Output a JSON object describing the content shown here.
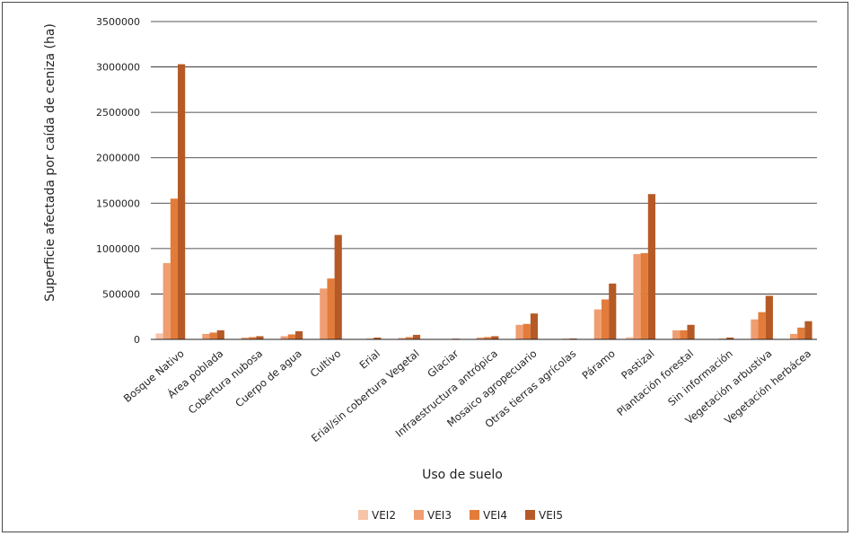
{
  "chart_data": {
    "type": "bar",
    "title": "",
    "xlabel": "Uso de suelo",
    "ylabel": "Superficie afectada por caída de ceniza (ha)",
    "ylim": [
      0,
      3500000
    ],
    "yticks": [
      0,
      500000,
      1000000,
      1500000,
      2000000,
      2500000,
      3000000,
      3500000
    ],
    "grid": true,
    "legend_position": "bottom",
    "categories": [
      "Bosque Nativo",
      "Área poblada",
      "Cobertura nubosa",
      "Cuerpo de agua",
      "Cultivo",
      "Erial",
      "Erial/sin cobertura Vegetal",
      "Glaciar",
      "Infraestructura antrópica",
      "Mosaico agropecuario",
      "Otras tierras agrícolas",
      "Páramo",
      "Pastizal",
      "Plantación forestal",
      "Sin información",
      "Vegetación arbustiva",
      "Vegetación herbácea"
    ],
    "series": [
      {
        "name": "VEI2",
        "color": "#f7c4a8",
        "values": [
          65000,
          0,
          0,
          0,
          0,
          0,
          0,
          0,
          0,
          0,
          0,
          0,
          25000,
          0,
          0,
          0,
          0
        ]
      },
      {
        "name": "VEI3",
        "color": "#ef9e72",
        "values": [
          840000,
          60000,
          20000,
          35000,
          560000,
          5000,
          15000,
          3000,
          20000,
          160000,
          5000,
          330000,
          940000,
          100000,
          5000,
          220000,
          60000
        ]
      },
      {
        "name": "VEI4",
        "color": "#e37c3a",
        "values": [
          1550000,
          75000,
          25000,
          55000,
          670000,
          8000,
          25000,
          5000,
          25000,
          170000,
          7000,
          440000,
          950000,
          100000,
          8000,
          300000,
          130000
        ]
      },
      {
        "name": "VEI5",
        "color": "#b55a26",
        "values": [
          3030000,
          100000,
          35000,
          90000,
          1150000,
          20000,
          50000,
          8000,
          35000,
          285000,
          10000,
          615000,
          1600000,
          160000,
          20000,
          480000,
          200000
        ]
      }
    ]
  }
}
